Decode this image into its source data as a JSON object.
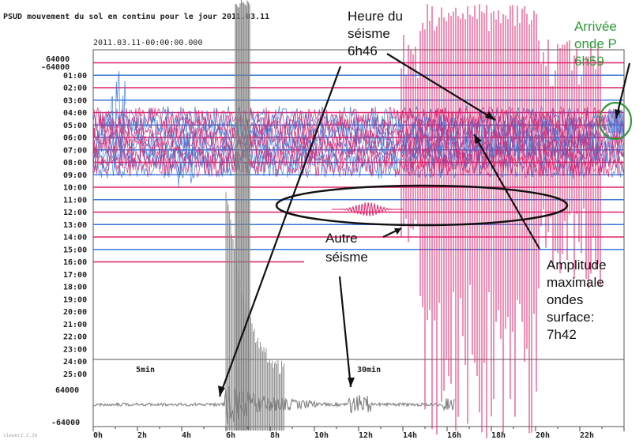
{
  "header": {
    "title": "PSUD mouvement du sol en continu pour le jour 2011.03.11",
    "start_timestamp": "2011.03.11-00:00:00.000",
    "amplitude_top": "64000",
    "amplitude_top_neg": "-64000"
  },
  "rows": [
    "01:00",
    "02:00",
    "03:00",
    "04:00",
    "05:00",
    "06:00",
    "07:00",
    "08:00",
    "09:00",
    "10:00",
    "11:00",
    "12:00",
    "13:00",
    "14:00",
    "15:00",
    "16:00",
    "17:00",
    "18:00",
    "19:00",
    "20:00",
    "21:00",
    "22:00",
    "23:00",
    "24:00",
    "25:00"
  ],
  "bottom_panel": {
    "marker_5min": "5min",
    "marker_30min": "30min",
    "amp_pos": "64000",
    "amp_neg": "-64000"
  },
  "x_ticks": [
    "0h",
    "2h",
    "4h",
    "6h",
    "8h",
    "10h",
    "12h",
    "14h",
    "16h",
    "18h",
    "20h",
    "22h"
  ],
  "annotations": {
    "heure_line1": "Heure du",
    "heure_line2": "séisme",
    "heure_line3": "6h46",
    "arrivee_line1": "Arrivée",
    "arrivee_line2": "onde P",
    "arrivee_line3": "6h59",
    "autre_line1": "Autre",
    "autre_line2": "séisme",
    "amp_line1": "Amplitude",
    "amp_line2": "maximale",
    "amp_line3": "ondes",
    "amp_line4": "surface:",
    "amp_line5": "7h42"
  },
  "footer": {
    "version": "v1ewer2.2.26"
  },
  "colors": {
    "pink": "#e0206a",
    "blue": "#3a78d8",
    "gray": "#808080",
    "green": "#2f9a3a",
    "frame": "#555555"
  },
  "chart_data": {
    "type": "line",
    "title": "PSUD mouvement du sol en continu pour le jour 2011.03.11",
    "xlabel": "",
    "ylabel": "",
    "x_ticks": [
      "0h",
      "2h",
      "4h",
      "6h",
      "8h",
      "10h",
      "12h",
      "14h",
      "16h",
      "18h",
      "20h",
      "22h"
    ],
    "row_labels": [
      "01:00",
      "02:00",
      "03:00",
      "04:00",
      "05:00",
      "06:00",
      "07:00",
      "08:00",
      "09:00",
      "10:00",
      "11:00",
      "12:00",
      "13:00",
      "14:00",
      "15:00",
      "16:00",
      "17:00",
      "18:00",
      "19:00",
      "20:00",
      "21:00",
      "22:00",
      "23:00",
      "24:00",
      "25:00"
    ],
    "amplitude_range": [
      -64000,
      64000
    ],
    "events": [
      {
        "label": "Heure du séisme",
        "time": "6h46"
      },
      {
        "label": "Arrivée onde P",
        "time": "6h59"
      },
      {
        "label": "Amplitude maximale ondes surface",
        "time": "7h42"
      }
    ],
    "grid": false,
    "legend": "none"
  }
}
